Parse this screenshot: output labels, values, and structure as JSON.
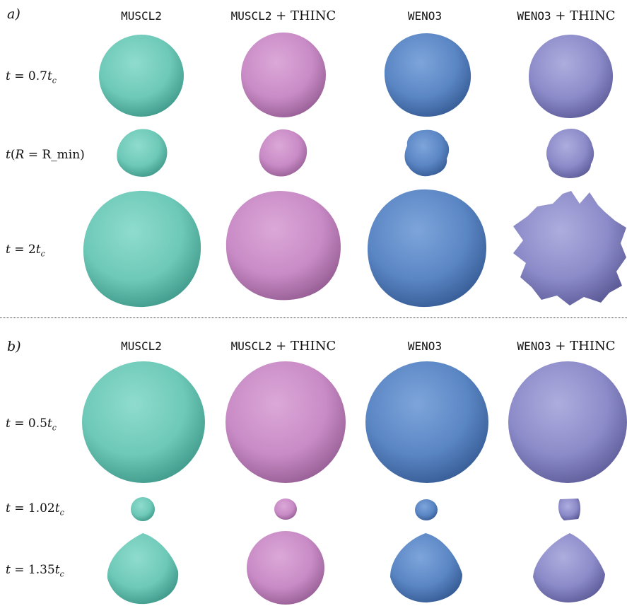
{
  "panels": [
    {
      "label": "a)",
      "columns": [
        {
          "mono": "MUSCL2",
          "suffix": ""
        },
        {
          "mono": "MUSCL2",
          "suffix": " + THINC"
        },
        {
          "mono": "WENO3",
          "suffix": ""
        },
        {
          "mono": "WENO3",
          "suffix": " + THINC"
        }
      ],
      "rows": [
        {
          "label_pre": "t",
          "label_mid": " = 0.7",
          "label_var": "t",
          "label_sub": "c",
          "label_end": ""
        },
        {
          "label_pre": "t",
          "label_mid": "(",
          "label_var": "R",
          "label_sub": "",
          "label_end": " = R_min)"
        },
        {
          "label_pre": "t",
          "label_mid": " = 2",
          "label_var": "t",
          "label_sub": "c",
          "label_end": ""
        }
      ]
    },
    {
      "label": "b)",
      "columns": [
        {
          "mono": "MUSCL2",
          "suffix": ""
        },
        {
          "mono": "MUSCL2",
          "suffix": " + THINC"
        },
        {
          "mono": "WENO3",
          "suffix": ""
        },
        {
          "mono": "WENO3",
          "suffix": " + THINC"
        }
      ],
      "rows": [
        {
          "label_pre": "t",
          "label_mid": " = 0.5",
          "label_var": "t",
          "label_sub": "c",
          "label_end": ""
        },
        {
          "label_pre": "t",
          "label_mid": " = 1.02",
          "label_var": "t",
          "label_sub": "c",
          "label_end": ""
        },
        {
          "label_pre": "t",
          "label_mid": " = 1.35",
          "label_var": "t",
          "label_sub": "c",
          "label_end": ""
        }
      ]
    }
  ],
  "colors": {
    "muscl2": "#6ec9b8",
    "muscl2_thinc": "#c98bc6",
    "weno3": "#5a86c4",
    "weno3_thinc": "#8c8bc9"
  }
}
